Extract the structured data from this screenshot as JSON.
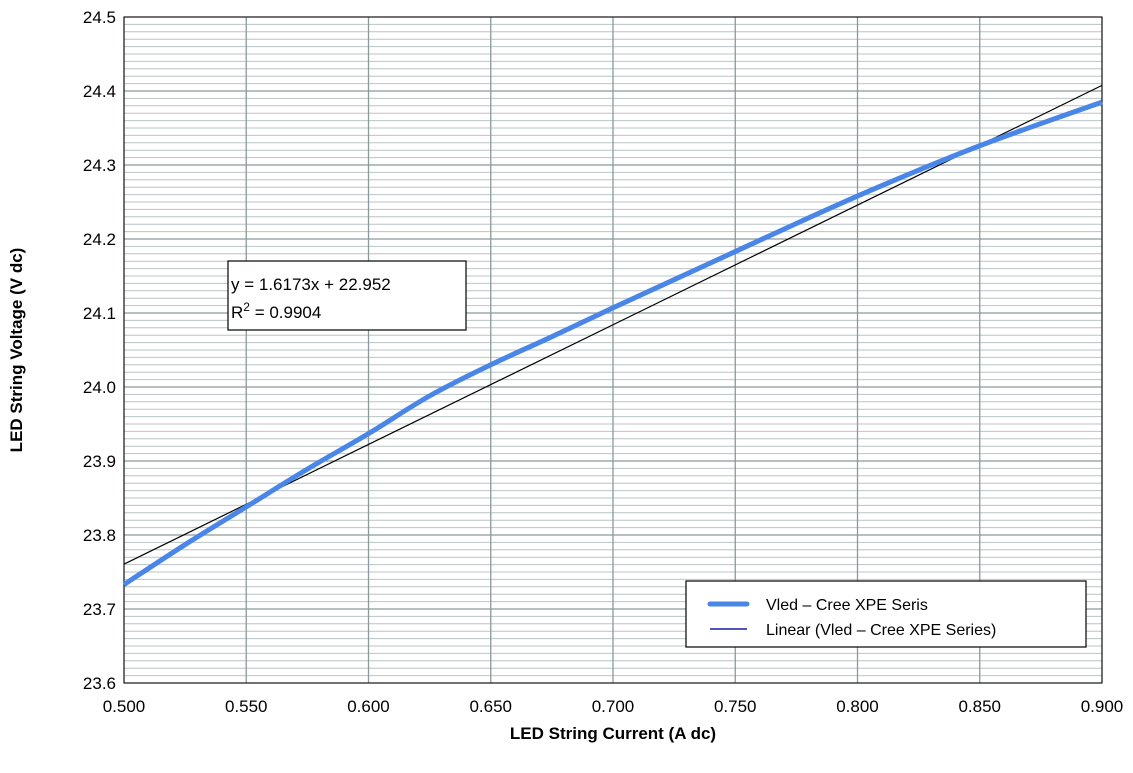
{
  "chart_data": {
    "type": "line",
    "title": "",
    "xlabel": "LED String Current (A dc)",
    "ylabel": "LED String Voltage (V dc)",
    "xlim": [
      0.5,
      0.9
    ],
    "ylim": [
      23.6,
      24.5
    ],
    "x_ticks": [
      "0.500",
      "0.550",
      "0.600",
      "0.650",
      "0.700",
      "0.750",
      "0.800",
      "0.850",
      "0.900"
    ],
    "y_ticks": [
      "23.6",
      "23.7",
      "23.8",
      "23.9",
      "24.0",
      "24.1",
      "24.2",
      "24.3",
      "24.4",
      "24.5"
    ],
    "grid": true,
    "legend_position": "bottom-right",
    "series": [
      {
        "name": "Vled – Cree XPE Seris",
        "color": "#4a86e8",
        "style": "thick",
        "x": [
          0.5,
          0.525,
          0.55,
          0.575,
          0.6,
          0.625,
          0.65,
          0.675,
          0.7,
          0.725,
          0.75,
          0.775,
          0.8,
          0.825,
          0.85,
          0.875,
          0.9
        ],
        "y": [
          23.733,
          23.787,
          23.838,
          23.889,
          23.937,
          23.988,
          24.03,
          24.068,
          24.107,
          24.145,
          24.183,
          24.221,
          24.258,
          24.293,
          24.326,
          24.356,
          24.385
        ]
      },
      {
        "name": "Linear (Vled – Cree XPE Series)",
        "color": "#000000",
        "legend_color": "#1a1aa6",
        "style": "thin",
        "slope": 1.6173,
        "intercept": 22.952
      }
    ],
    "annotation": {
      "equation": "y = 1.6173x + 22.952",
      "r2_prefix": "R",
      "r2_sup": "2",
      "r2_value": " = 0.9904"
    }
  }
}
